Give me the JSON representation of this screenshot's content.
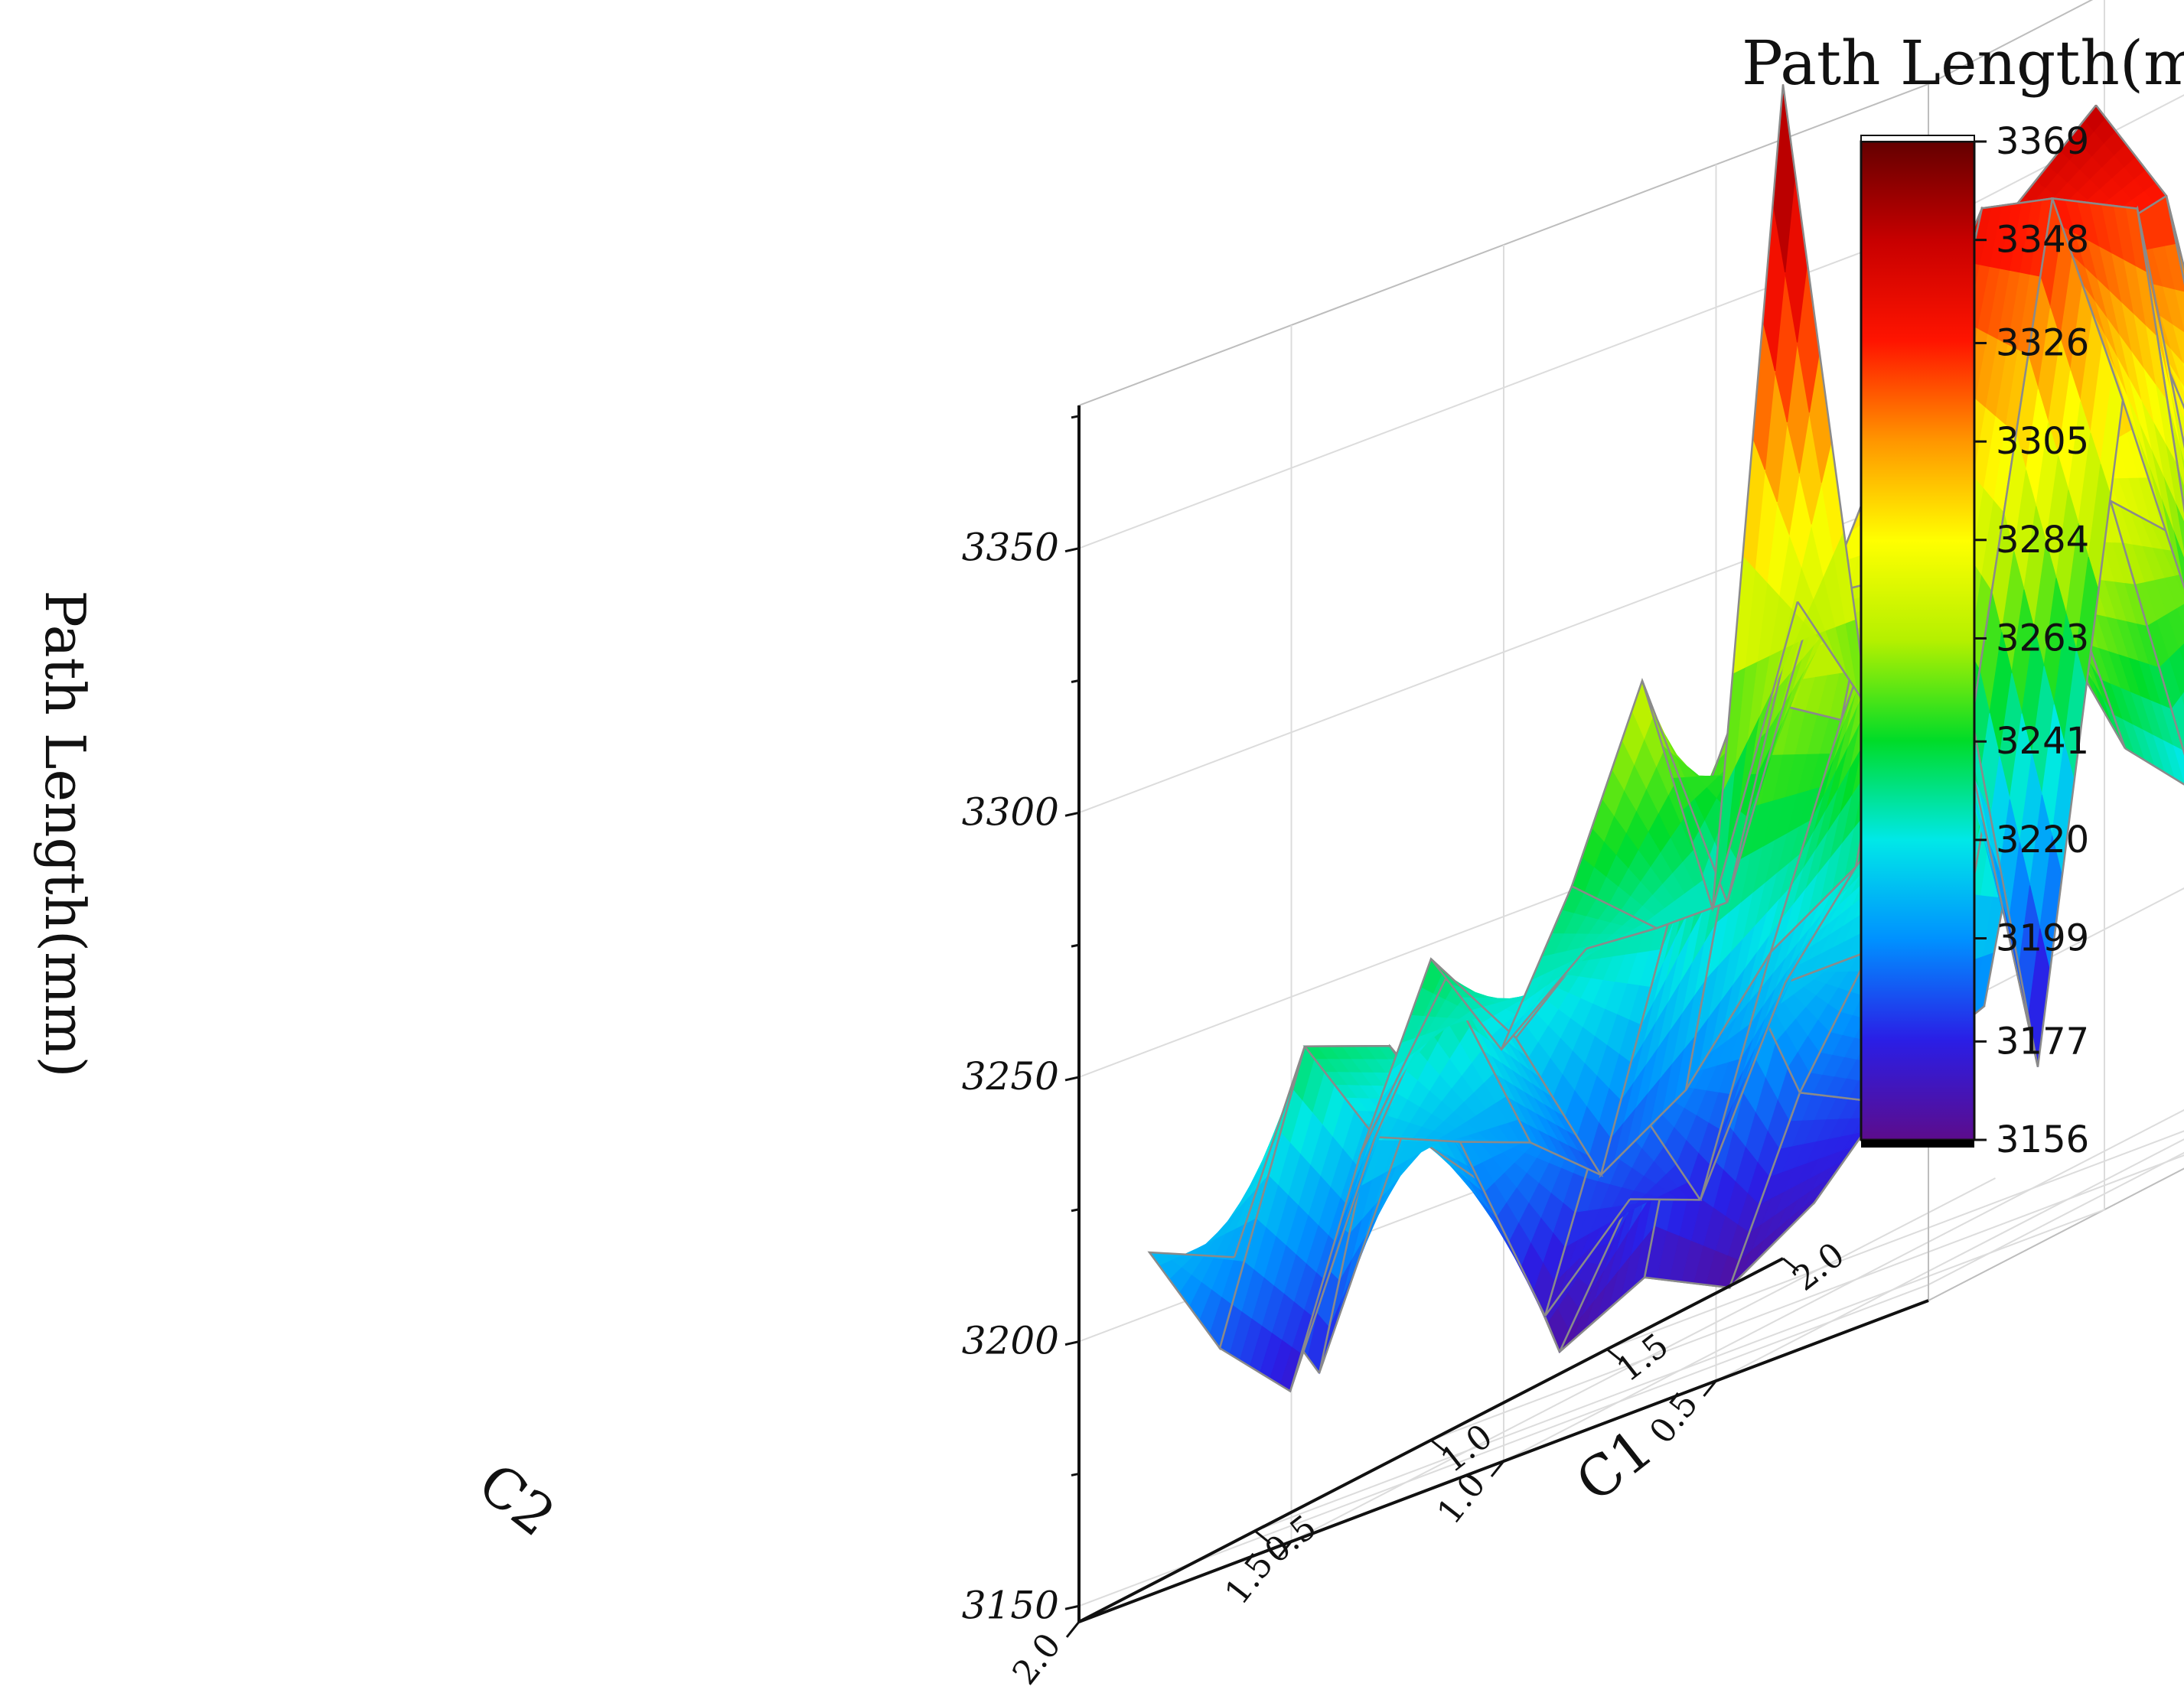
{
  "chart_data": {
    "type": "surface3d",
    "legend_title": "Path Length(mm)",
    "zlabel": "Path Length(mm)",
    "xlabel": "C2",
    "ylabel": "C1",
    "x_ticks": [
      "0.5",
      "1.0",
      "1.5",
      "2.0"
    ],
    "y_ticks": [
      "0.5",
      "1.0",
      "1.5",
      "2.0"
    ],
    "z_ticks": [
      "3150",
      "3200",
      "3250",
      "3300",
      "3350"
    ],
    "colorbar_ticks": [
      "3369",
      "3348",
      "3326",
      "3305",
      "3284",
      "3263",
      "3241",
      "3220",
      "3199",
      "3177",
      "3156"
    ],
    "zlim": [
      3147,
      3377
    ],
    "color_range": [
      3156,
      3369
    ],
    "colormap": [
      "#5c0c8c",
      "#2a1ee6",
      "#0090ff",
      "#00e8e8",
      "#00dc28",
      "#b4f000",
      "#ffff00",
      "#ff9600",
      "#ff1400",
      "#c80000",
      "#640000"
    ],
    "grid": true,
    "x": [
      0.2,
      0.4,
      0.6,
      0.8,
      1.0,
      1.2,
      1.4,
      1.6,
      1.8,
      2.0
    ],
    "y": [
      0.2,
      0.4,
      0.6,
      0.8,
      1.0,
      1.2,
      1.4,
      1.6,
      1.8,
      2.0
    ],
    "z": [
      [
        3240,
        3195,
        3260,
        3230,
        3215,
        3236,
        3245,
        3228,
        3236,
        3250
      ],
      [
        3220,
        3188,
        3305,
        3282,
        3276,
        3262,
        3255,
        3242,
        3228,
        3215
      ],
      [
        3210,
        3170,
        3182,
        3198,
        3312,
        3350,
        3326,
        3255,
        3230,
        3185
      ],
      [
        3200,
        3160,
        3190,
        3210,
        3240,
        3336,
        3322,
        3300,
        3235,
        3192
      ],
      [
        3205,
        3168,
        3230,
        3210,
        3225,
        3290,
        3305,
        3298,
        3322,
        3230
      ],
      [
        3198,
        3160,
        3182,
        3175,
        3215,
        3252,
        3310,
        3335,
        3330,
        3285
      ],
      [
        3215,
        3205,
        3166,
        3205,
        3195,
        3262,
        3275,
        3268,
        3232,
        3165
      ],
      [
        3175,
        3230,
        3205,
        3198,
        3185,
        3228,
        3262,
        3272,
        3270,
        3256
      ],
      [
        3203,
        3236,
        3212,
        3235,
        3217,
        3227,
        3224,
        3222,
        3272,
        3245
      ],
      [
        3210,
        3185,
        3170,
        3208,
        3238,
        3214,
        3238,
        3270,
        3220,
        3369
      ]
    ]
  }
}
